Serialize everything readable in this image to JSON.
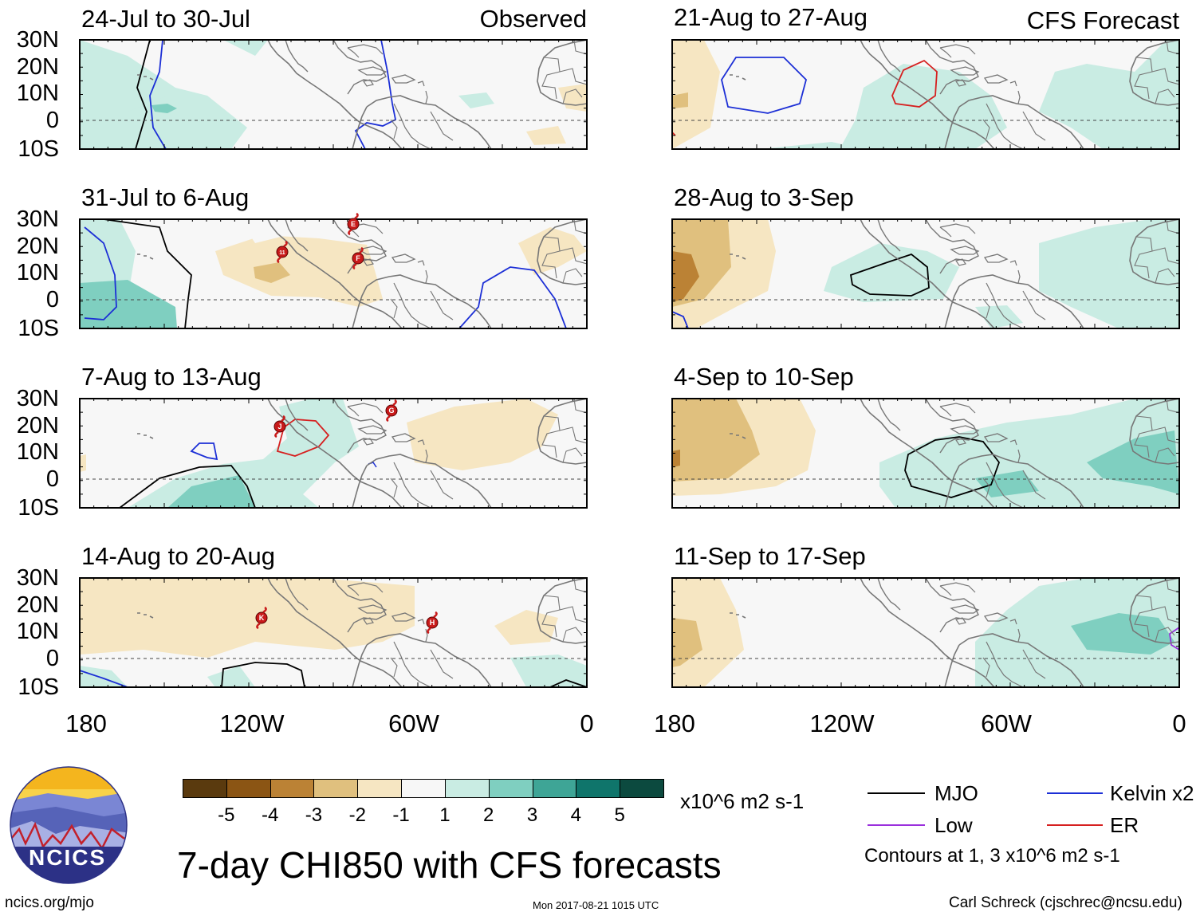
{
  "panels": [
    {
      "title": "24-Jul to 30-Jul",
      "label": "Observed"
    },
    {
      "title": "21-Aug to 27-Aug",
      "label": "CFS Forecast"
    },
    {
      "title": "31-Jul to 6-Aug",
      "label": ""
    },
    {
      "title": "28-Aug to 3-Sep",
      "label": ""
    },
    {
      "title": "7-Aug to 13-Aug",
      "label": ""
    },
    {
      "title": "4-Sep to 10-Sep",
      "label": ""
    },
    {
      "title": "14-Aug to 20-Aug",
      "label": ""
    },
    {
      "title": "11-Sep to 17-Sep",
      "label": ""
    }
  ],
  "lat_labels": [
    "30N",
    "20N",
    "10N",
    "0",
    "10S"
  ],
  "lon_labels": [
    "180",
    "120W",
    "60W",
    "0"
  ],
  "colorbar": {
    "colors": [
      "#5a3a0e",
      "#8b5514",
      "#bb8235",
      "#e0c07e",
      "#f6e6c2",
      "#f7f7f7",
      "#c9ece3",
      "#7fcfc0",
      "#3ea596",
      "#0f756b",
      "#0c4a3f"
    ],
    "ticks": [
      "-5",
      "-4",
      "-3",
      "-2",
      "-1",
      "1",
      "2",
      "3",
      "4",
      "5"
    ],
    "units": "x10^6 m2 s-1"
  },
  "legend": {
    "items": [
      {
        "label": "MJO",
        "color": "#000000"
      },
      {
        "label": "Kelvin x2",
        "color": "#1c2fd6"
      },
      {
        "label": "Low",
        "color": "#9a2fdc"
      },
      {
        "label": "ER",
        "color": "#d62020"
      }
    ],
    "note": "Contours at 1, 3 x10^6 m2 s-1"
  },
  "storm_markers": [
    {
      "panel": 2,
      "letter": "E"
    },
    {
      "panel": 2,
      "letter": "11"
    },
    {
      "panel": 2,
      "letter": "F"
    },
    {
      "panel": 4,
      "letter": "J"
    },
    {
      "panel": 4,
      "letter": "G"
    },
    {
      "panel": 6,
      "letter": "K"
    },
    {
      "panel": 6,
      "letter": "H"
    }
  ],
  "logo": {
    "text": "NCICS"
  },
  "main_title": "7-day CHI850 with CFS forecasts",
  "footer": {
    "left": "ncics.org/mjo",
    "center": "Mon 2017-08-21 1015 UTC",
    "right": "Carl Schreck (cjschrec@ncsu.edu)"
  }
}
